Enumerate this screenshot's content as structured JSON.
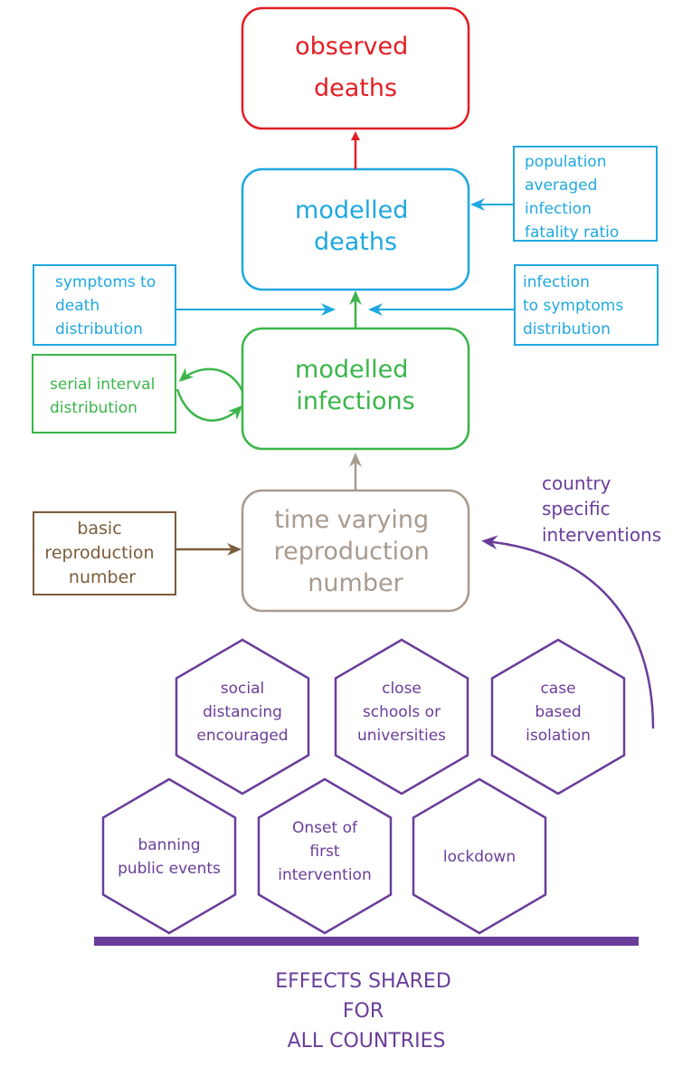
{
  "colors": {
    "observed": "#e31e24",
    "modelled_deaths": "#1fa8e0",
    "modelled_infections": "#3bb54a",
    "reproduction": "#a89a8e",
    "basic": "#7b5c3a",
    "interventions": "#6a3d9a"
  },
  "nodes": {
    "observed_deaths": [
      "observed",
      "deaths"
    ],
    "modelled_deaths": [
      "modelled",
      "deaths"
    ],
    "modelled_infections": [
      "modelled",
      "infections"
    ],
    "time_varying": [
      "time varying",
      "reproduction",
      "number"
    ],
    "ifr": [
      "population",
      "averaged",
      "infection",
      "fatality ratio"
    ],
    "symptoms_to_death": [
      "symptoms to",
      "death",
      "distribution"
    ],
    "infection_to_symptoms": [
      "infection",
      "to symptoms",
      "distribution"
    ],
    "serial_interval": [
      "serial interval",
      "distribution"
    ],
    "basic_reproduction": [
      "basic",
      "reproduction",
      "number"
    ],
    "country_specific": [
      "country",
      "specific",
      "interventions"
    ]
  },
  "interventions": [
    [
      "social",
      "distancing",
      "encouraged"
    ],
    [
      "close",
      "schools or",
      "universities"
    ],
    [
      "case",
      "based",
      "isolation"
    ],
    [
      "banning",
      "public events"
    ],
    [
      "Onset of",
      "first",
      "intervention"
    ],
    [
      "lockdown"
    ]
  ],
  "footer": [
    "EFFECTS SHARED",
    "FOR",
    "ALL COUNTRIES"
  ]
}
